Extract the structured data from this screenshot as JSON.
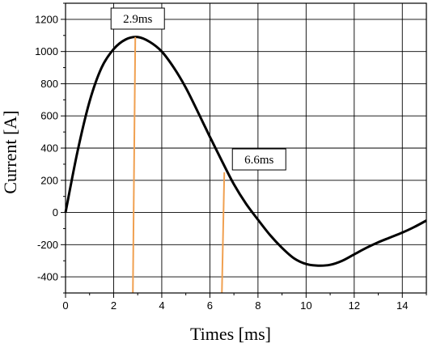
{
  "chart_data": {
    "type": "line",
    "xlabel": "Times [ms]",
    "ylabel": "Current [A]",
    "xlim": [
      0,
      15
    ],
    "ylim": [
      -500,
      1300
    ],
    "x_ticks": [
      0,
      2,
      4,
      6,
      8,
      10,
      12,
      14
    ],
    "y_ticks": [
      -400,
      -200,
      0,
      200,
      400,
      600,
      800,
      1000,
      1200
    ],
    "grid": true,
    "series": [
      {
        "color": "#000000",
        "x": [
          0,
          0.5,
          1.0,
          1.5,
          2.0,
          2.5,
          3.0,
          3.5,
          4.0,
          4.5,
          5.0,
          5.5,
          6.0,
          6.5,
          7.0,
          7.5,
          8.0,
          8.5,
          9.0,
          9.5,
          10.0,
          10.5,
          11.0,
          11.5,
          12.0,
          12.5,
          13.0,
          13.5,
          14.0,
          14.5,
          15.0
        ],
        "y": [
          0,
          380,
          690,
          900,
          1015,
          1075,
          1090,
          1060,
          1000,
          900,
          775,
          625,
          470,
          320,
          175,
          55,
          -45,
          -140,
          -220,
          -285,
          -320,
          -330,
          -325,
          -300,
          -260,
          -220,
          -185,
          -155,
          -125,
          -90,
          -50
        ]
      }
    ],
    "markers": [
      {
        "label": "2.9ms",
        "x": 2.9,
        "y": 1090,
        "color": "#f0a050"
      },
      {
        "label": "6.6ms",
        "x": 6.6,
        "y": 250,
        "color": "#f0a050"
      }
    ]
  }
}
